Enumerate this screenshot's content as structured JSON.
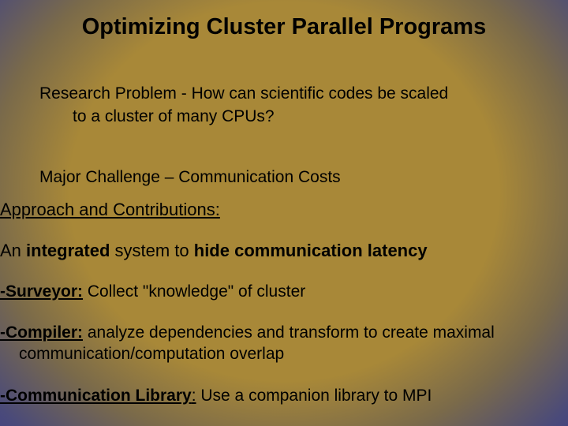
{
  "title": "Optimizing Cluster Parallel Programs",
  "research": {
    "line1": "Research Problem - How can scientific codes be scaled",
    "line2": "to a cluster of many CPUs?"
  },
  "challenge": "Major Challenge – Communication Costs",
  "approach_header": "Approach and Contributions:",
  "integrated": {
    "pre": "An ",
    "bold1": "integrated",
    "mid": " system to ",
    "bold2": "hide communication latency"
  },
  "surveyor": {
    "label": "-Surveyor:",
    "text": " Collect \"knowledge\" of cluster"
  },
  "compiler": {
    "label": "-Compiler:",
    "text1": " analyze dependencies and transform to create maximal",
    "text2": "communication/computation overlap"
  },
  "commlib": {
    "label": "-Communication Library",
    "colon": ":",
    "text": " Use a companion library to MPI"
  },
  "colors": {
    "bg_outer": "#3a3a8a",
    "bg_inner": "#a88838",
    "text": "#000000"
  }
}
